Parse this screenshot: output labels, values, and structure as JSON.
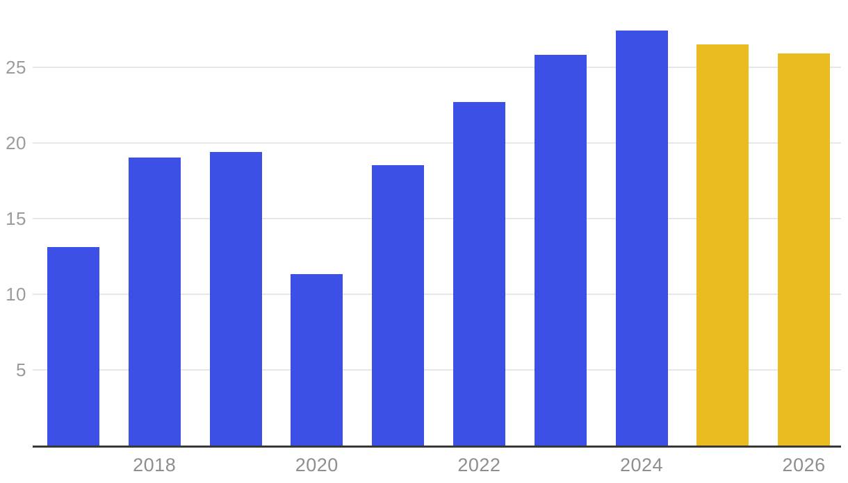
{
  "chart_data": {
    "type": "bar",
    "title": "",
    "xlabel": "",
    "ylabel": "",
    "categories": [
      "2017",
      "2018",
      "2019",
      "2020",
      "2021",
      "2022",
      "2023",
      "2024",
      "2025",
      "2026"
    ],
    "values": [
      13.1,
      19.0,
      19.4,
      11.3,
      18.5,
      22.7,
      25.8,
      27.4,
      26.5,
      25.9
    ],
    "bar_styles": [
      "actual",
      "actual",
      "actual",
      "actual",
      "actual",
      "actual",
      "actual",
      "actual",
      "forecast",
      "forecast"
    ],
    "colors": {
      "actual": "#3C50E8",
      "forecast": "#EABC22"
    },
    "x_tick_labels": [
      "2018",
      "2020",
      "2022",
      "2024",
      "2026"
    ],
    "y_tick_labels": [
      "5",
      "10",
      "15",
      "20",
      "25"
    ],
    "y_tick_values": [
      5,
      10,
      15,
      20,
      25
    ],
    "ylim": [
      0,
      29.5
    ],
    "grid": true,
    "legend": "none",
    "axis_color": "#383838",
    "grid_color": "#E7E7E7",
    "y_label_color": "#9B9B9B",
    "x_label_color": "#8E8E8E"
  }
}
